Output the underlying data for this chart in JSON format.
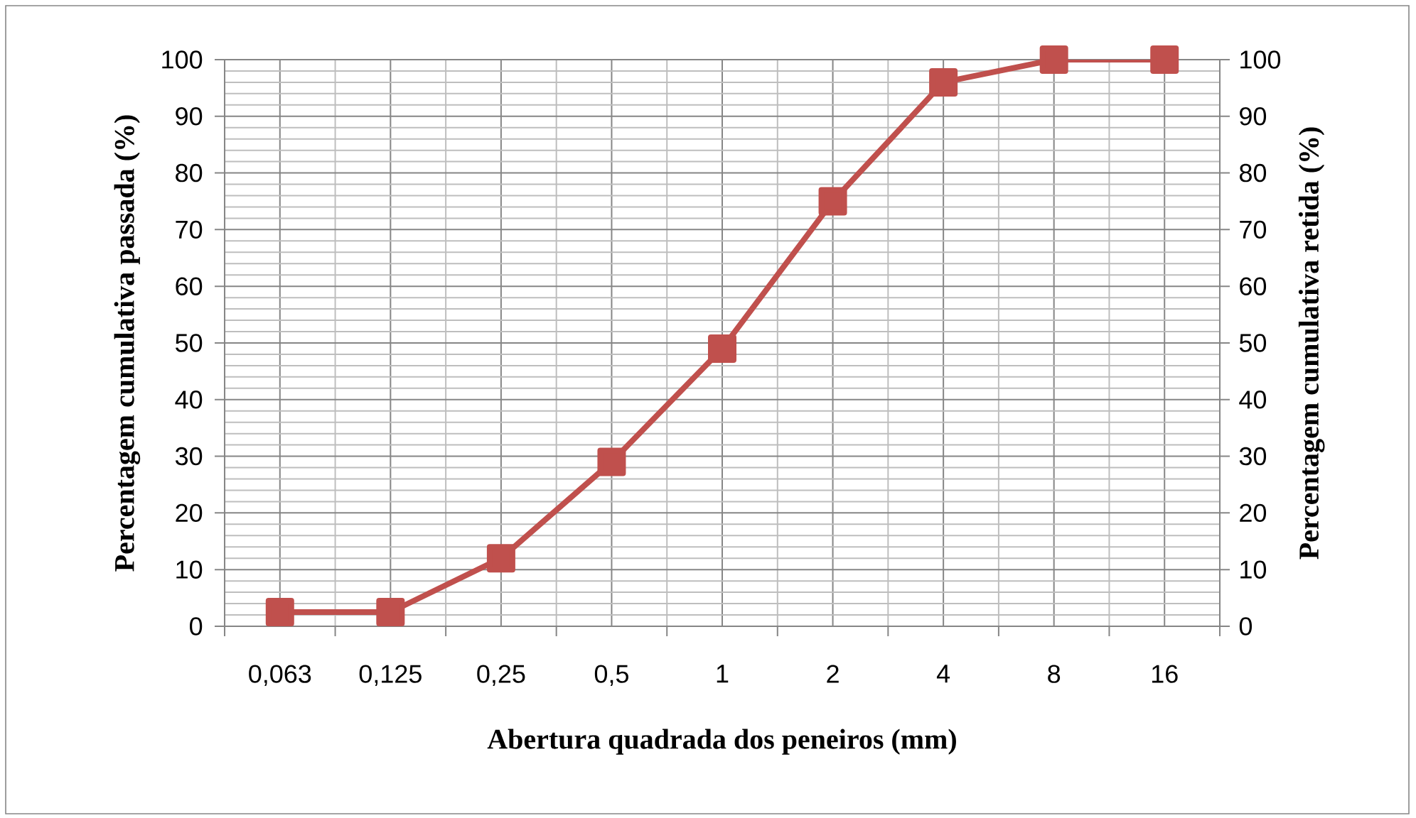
{
  "chart_data": {
    "type": "line",
    "xlabel": "Abertura quadrada dos peneiros (mm)",
    "ylabel": "Percentagem cumulativa  passada (%)",
    "y2label": "Percentagem cumulativa retida (%)",
    "categories": [
      "0,063",
      "0,125",
      "0,25",
      "0,5",
      "1",
      "2",
      "4",
      "8",
      "16"
    ],
    "series": [
      {
        "color": "#c0504d",
        "values": [
          2.5,
          2.5,
          12,
          29,
          49,
          75,
          96,
          100,
          100
        ]
      }
    ],
    "ylim": [
      0,
      100
    ],
    "yticks": [
      0,
      10,
      20,
      30,
      40,
      50,
      60,
      70,
      80,
      90,
      100
    ],
    "y2lim": [
      0,
      100
    ],
    "y2ticks": [
      0,
      10,
      20,
      30,
      40,
      50,
      60,
      70,
      80,
      90,
      100
    ],
    "grid": true,
    "marker": "square",
    "line_style": "solid"
  }
}
